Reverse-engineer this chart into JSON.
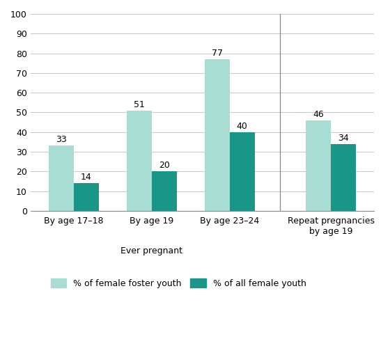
{
  "groups": [
    "By age 17–18",
    "By age 19",
    "By age 23–24",
    "Repeat pregnancies\nby age 19"
  ],
  "foster_values": [
    33,
    51,
    77,
    46
  ],
  "all_values": [
    14,
    20,
    40,
    34
  ],
  "foster_color": "#a8ddd4",
  "all_color": "#1a9688",
  "ylim": [
    0,
    100
  ],
  "yticks": [
    0,
    10,
    20,
    30,
    40,
    50,
    60,
    70,
    80,
    90,
    100
  ],
  "xlabel_groups": "Ever pregnant",
  "bar_width": 0.32,
  "legend_foster": "% of female foster youth",
  "legend_all": "% of all female youth",
  "value_fontsize": 9,
  "axis_label_fontsize": 9,
  "legend_fontsize": 9,
  "tick_fontsize": 9,
  "group_positions": [
    0,
    1,
    2,
    3.3
  ],
  "xlim_left": -0.55,
  "xlim_right": 3.85
}
